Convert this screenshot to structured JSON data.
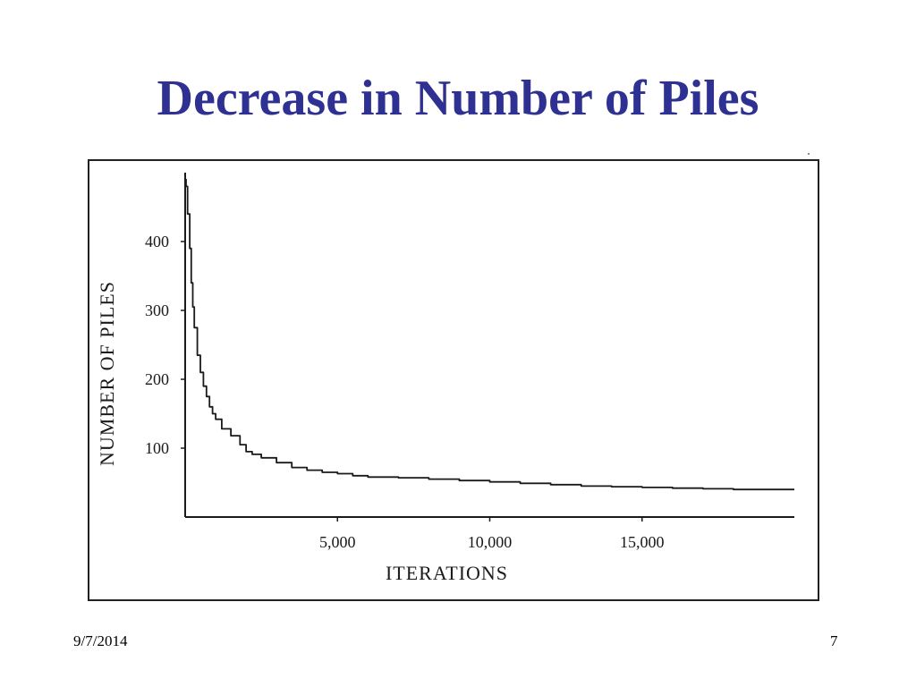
{
  "slide": {
    "title": "Decrease in Number of Piles",
    "date": "9/7/2014",
    "page_number": "7"
  },
  "colors": {
    "title": "#2E3192",
    "chart_ink": "#1a1a1a",
    "background": "#ffffff"
  },
  "chart_data": {
    "type": "line",
    "title": "",
    "xlabel": "ITERATIONS",
    "ylabel": "NUMBER OF PILES",
    "xlim": [
      0,
      20000
    ],
    "ylim": [
      0,
      500
    ],
    "x_ticks": [
      5000,
      10000,
      15000
    ],
    "x_tick_labels": [
      "5,000",
      "10,000",
      "15,000"
    ],
    "y_ticks": [
      100,
      200,
      300,
      400
    ],
    "y_tick_labels": [
      "100",
      "200",
      "300",
      "400"
    ],
    "grid": false,
    "legend": "none",
    "series": [
      {
        "x": [
          0,
          30,
          80,
          150,
          200,
          250,
          300,
          400,
          500,
          600,
          700,
          800,
          900,
          1000,
          1200,
          1500,
          1800,
          2000,
          2200,
          2500,
          3000,
          3500,
          4000,
          4500,
          5000,
          5500,
          6000,
          7000,
          8000,
          9000,
          10000,
          11000,
          12000,
          13000,
          14000,
          15000,
          16000,
          17000,
          18000,
          19000,
          20000
        ],
        "y": [
          490,
          480,
          440,
          390,
          340,
          305,
          275,
          235,
          210,
          190,
          175,
          160,
          150,
          142,
          128,
          118,
          105,
          95,
          91,
          86,
          79,
          72,
          68,
          65,
          63,
          60,
          58,
          57,
          55,
          53,
          51,
          49,
          47,
          45,
          44,
          43,
          42,
          41,
          40,
          40,
          40
        ]
      }
    ]
  }
}
